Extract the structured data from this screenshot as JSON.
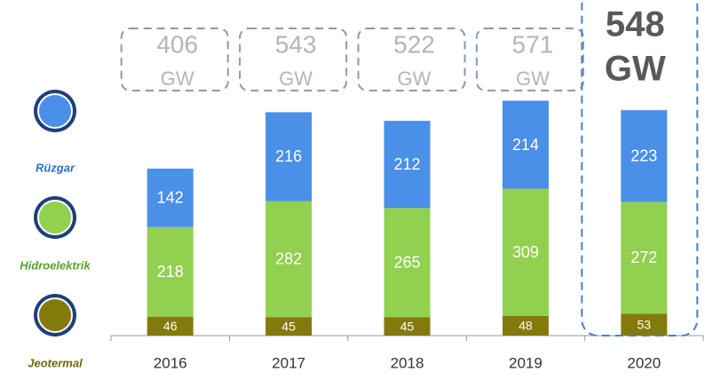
{
  "chart_data": {
    "type": "stacked-bar",
    "categories": [
      "2016",
      "2017",
      "2018",
      "2019",
      "2020"
    ],
    "series": [
      {
        "name": "Jeotermal",
        "color": "#847a0c",
        "values": [
          46,
          45,
          45,
          48,
          53
        ]
      },
      {
        "name": "Hidroelektrik",
        "color": "#92d050",
        "values": [
          218,
          282,
          265,
          309,
          272
        ]
      },
      {
        "name": "Rüzgar",
        "color": "#4a8fe8",
        "values": [
          142,
          216,
          212,
          214,
          223
        ]
      }
    ],
    "totals": [
      406,
      543,
      522,
      571,
      548
    ],
    "total_unit": "GW",
    "highlighted_category": "2020",
    "ylim": [
      0,
      600
    ]
  }
}
